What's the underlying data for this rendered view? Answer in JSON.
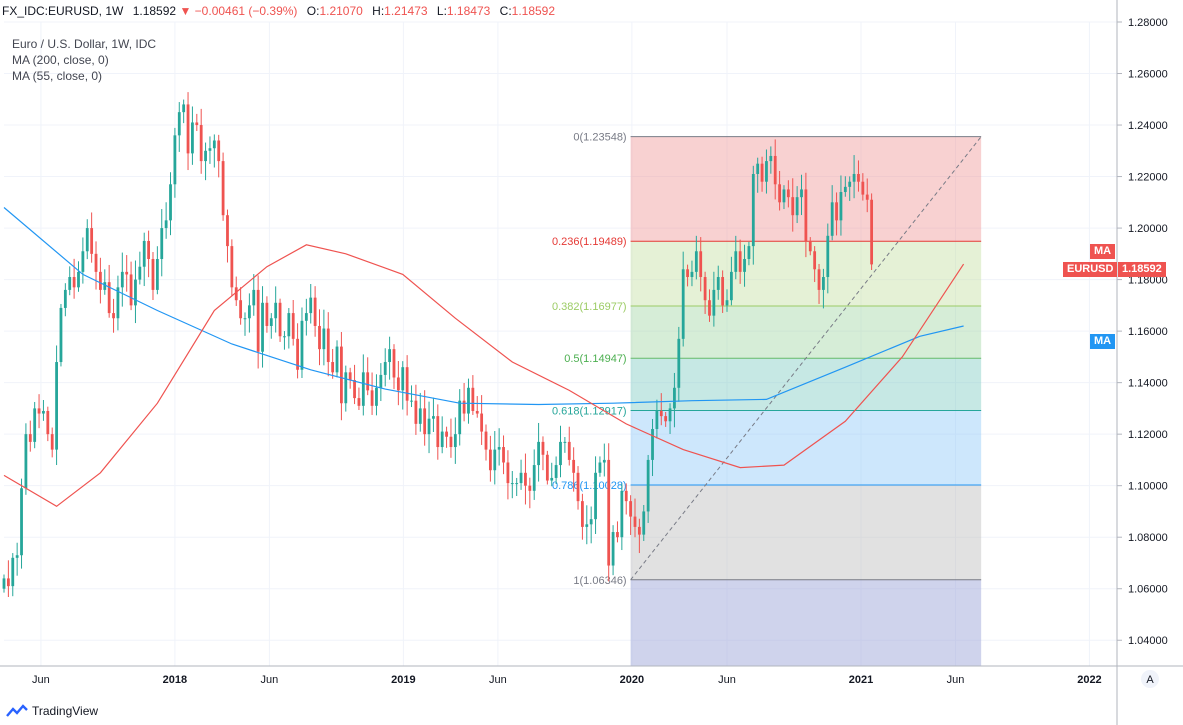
{
  "header": {
    "symbol": "FX_IDC:EURUSD, 1W",
    "last": "1.18592",
    "change": "−0.00461 (−0.39%)",
    "open_label": "O:",
    "open": "1.21070",
    "high_label": "H:",
    "high": "1.21473",
    "low_label": "L:",
    "low": "1.18473",
    "close_label": "C:",
    "close": "1.18592"
  },
  "legend": {
    "title": "Euro / U.S. Dollar, 1W, IDC",
    "ma1": "MA (200, close, 0)",
    "ma2": "MA (55, close, 0)"
  },
  "badges": {
    "ma_red": "MA",
    "price_symbol": "EURUSD",
    "price_value": "1.18592",
    "ma_blue": "MA"
  },
  "footer": {
    "brand": "TradingView",
    "scale_button": "A"
  },
  "colors": {
    "up": "#26a69a",
    "down": "#ef5350",
    "ma200": "#2196f3",
    "ma55": "#ef5350",
    "fib0": "#ef9a9a",
    "fib236": "#c5e1a5",
    "fib382": "#a5d6a7",
    "fib5": "#80cbc4",
    "fib618": "#90caf9",
    "fib786": "#bdbdbd",
    "fib1": "#9fa8da"
  },
  "chart_data": {
    "type": "candlestick",
    "title": "Euro / U.S. Dollar, 1W, IDC",
    "ylim": [
      1.03,
      1.28
    ],
    "y_ticks": [
      "1.04000",
      "1.06000",
      "1.08000",
      "1.10000",
      "1.12000",
      "1.14000",
      "1.16000",
      "1.18000",
      "1.20000",
      "1.22000",
      "1.24000",
      "1.26000",
      "1.28000"
    ],
    "x_ticks": [
      {
        "label": "Jun",
        "date": "2017-06-01"
      },
      {
        "label": "2018",
        "date": "2018-01-01"
      },
      {
        "label": "Jun",
        "date": "2018-06-01"
      },
      {
        "label": "2019",
        "date": "2019-01-01"
      },
      {
        "label": "Jun",
        "date": "2019-06-01"
      },
      {
        "label": "2020",
        "date": "2020-01-01"
      },
      {
        "label": "Jun",
        "date": "2020-06-01"
      },
      {
        "label": "2021",
        "date": "2021-01-01"
      },
      {
        "label": "Jun",
        "date": "2021-06-01"
      },
      {
        "label": "2022",
        "date": "2022-01-01"
      }
    ],
    "fibonacci": {
      "start": {
        "date": "2019-12-30",
        "price": 1.06346
      },
      "end": {
        "date": "2021-07-12",
        "price": 1.23548
      },
      "levels": [
        {
          "ratio": 0,
          "label": "0(1.23548)",
          "price": 1.23548
        },
        {
          "ratio": 0.236,
          "label": "0.236(1.19489)",
          "price": 1.19489
        },
        {
          "ratio": 0.382,
          "label": "0.382(1.16977)",
          "price": 1.16977
        },
        {
          "ratio": 0.5,
          "label": "0.5(1.14947)",
          "price": 1.14947
        },
        {
          "ratio": 0.618,
          "label": "0.618(1.12917)",
          "price": 1.12917
        },
        {
          "ratio": 0.786,
          "label": "0.786(1.10028)",
          "price": 1.10028
        },
        {
          "ratio": 1,
          "label": "1(1.06346)",
          "price": 1.06346
        }
      ]
    },
    "series": [
      {
        "name": "Euro / U.S. Dollar",
        "kind": "ohlc",
        "start": "2017-04-03",
        "interval_weeks": 1,
        "closes": [
          1.064,
          1.061,
          1.072,
          1.073,
          1.099,
          1.12,
          1.117,
          1.13,
          1.128,
          1.129,
          1.12,
          1.114,
          1.148,
          1.169,
          1.176,
          1.181,
          1.177,
          1.183,
          1.191,
          1.2,
          1.19,
          1.183,
          1.176,
          1.179,
          1.167,
          1.165,
          1.177,
          1.183,
          1.182,
          1.17,
          1.18,
          1.185,
          1.195,
          1.188,
          1.176,
          1.188,
          1.2,
          1.203,
          1.217,
          1.236,
          1.245,
          1.248,
          1.229,
          1.241,
          1.24,
          1.226,
          1.23,
          1.231,
          1.234,
          1.226,
          1.205,
          1.193,
          1.177,
          1.172,
          1.165,
          1.165,
          1.17,
          1.176,
          1.152,
          1.171,
          1.162,
          1.165,
          1.171,
          1.158,
          1.158,
          1.167,
          1.157,
          1.145,
          1.164,
          1.167,
          1.173,
          1.162,
          1.153,
          1.161,
          1.148,
          1.144,
          1.154,
          1.132,
          1.144,
          1.141,
          1.134,
          1.131,
          1.144,
          1.137,
          1.131,
          1.138,
          1.143,
          1.148,
          1.153,
          1.142,
          1.137,
          1.146,
          1.133,
          1.133,
          1.124,
          1.13,
          1.12,
          1.126,
          1.127,
          1.115,
          1.121,
          1.119,
          1.115,
          1.12,
          1.133,
          1.128,
          1.138,
          1.129,
          1.128,
          1.121,
          1.114,
          1.106,
          1.114,
          1.115,
          1.109,
          1.101,
          1.101,
          1.101,
          1.105,
          1.1,
          1.098,
          1.108,
          1.117,
          1.112,
          1.102,
          1.103,
          1.108,
          1.117,
          1.117,
          1.11,
          1.105,
          1.094,
          1.084,
          1.085,
          1.087,
          1.105,
          1.109,
          1.11,
          1.069,
          1.082,
          1.08,
          1.098,
          1.094,
          1.088,
          1.084,
          1.081,
          1.09,
          1.11,
          1.122,
          1.129,
          1.127,
          1.125,
          1.13,
          1.138,
          1.157,
          1.184,
          1.181,
          1.183,
          1.191,
          1.181,
          1.172,
          1.166,
          1.176,
          1.181,
          1.17,
          1.172,
          1.183,
          1.191,
          1.183,
          1.188,
          1.193,
          1.221,
          1.225,
          1.218,
          1.226,
          1.228,
          1.217,
          1.21,
          1.215,
          1.212,
          1.205,
          1.212,
          1.215,
          1.195,
          1.191,
          1.184,
          1.176,
          1.181,
          1.197,
          1.21,
          1.203,
          1.214,
          1.216,
          1.218,
          1.221,
          1.218,
          1.213,
          1.211,
          1.1859
        ]
      },
      {
        "name": "MA (200, close, 0)",
        "kind": "line",
        "color": "#2196f3",
        "x": [
          "2017-04-03",
          "2017-08-07",
          "2017-12-04",
          "2018-04-02",
          "2018-08-06",
          "2018-12-03",
          "2019-04-01",
          "2019-08-05",
          "2019-12-02",
          "2020-04-06",
          "2020-08-03",
          "2020-12-07",
          "2021-04-05",
          "2021-06-14"
        ],
        "y": [
          1.208,
          1.182,
          1.168,
          1.155,
          1.145,
          1.1375,
          1.132,
          1.1315,
          1.132,
          1.133,
          1.1335,
          1.146,
          1.158,
          1.162
        ]
      },
      {
        "name": "MA (55, close, 0)",
        "kind": "line",
        "color": "#ef5350",
        "x": [
          "2017-04-03",
          "2017-06-26",
          "2017-09-04",
          "2017-12-04",
          "2018-03-05",
          "2018-05-28",
          "2018-07-30",
          "2018-10-01",
          "2018-12-31",
          "2019-03-25",
          "2019-06-24",
          "2019-09-23",
          "2019-12-23",
          "2020-03-23",
          "2020-06-22",
          "2020-08-31",
          "2020-12-07",
          "2021-03-08",
          "2021-06-14"
        ],
        "y": [
          1.104,
          1.092,
          1.105,
          1.132,
          1.168,
          1.185,
          1.1935,
          1.19,
          1.182,
          1.165,
          1.148,
          1.137,
          1.124,
          1.114,
          1.107,
          1.108,
          1.125,
          1.15,
          1.186
        ]
      }
    ]
  }
}
